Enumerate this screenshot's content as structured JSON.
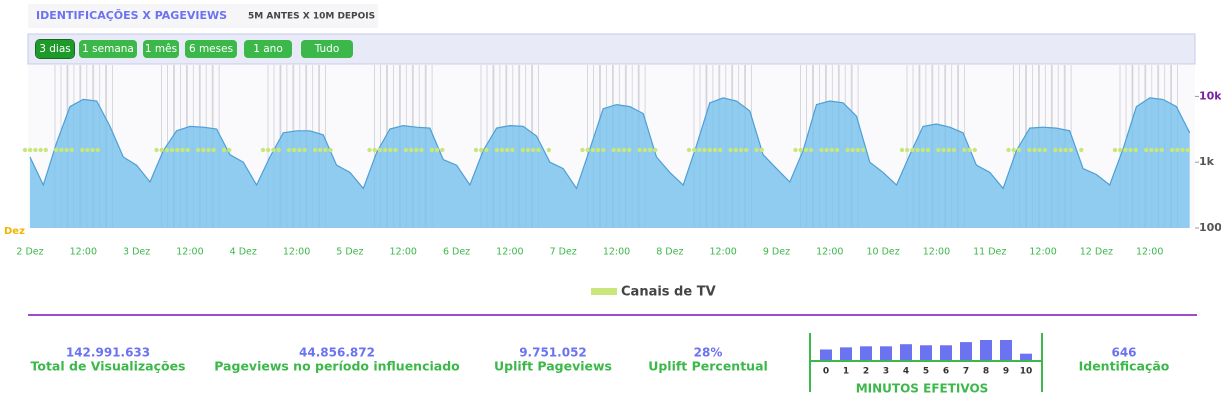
{
  "header": {
    "tabs": [
      "IDENTIFICAÇÕES X PAGEVIEWS",
      "5M ANTES X 10M DEPOIS"
    ]
  },
  "range_buttons": [
    "3 dias",
    "1 semana",
    "1 mês",
    "6 meses",
    "1 ano",
    "Tudo"
  ],
  "chart_data": {
    "type": "area",
    "log_scale": true,
    "ylim": [
      100,
      30000
    ],
    "yticks": [
      100,
      {
        "value": 1000,
        "label": "1k"
      },
      {
        "value": 10000,
        "label": "10k"
      }
    ],
    "x_left_label": "Dez",
    "categories": [
      "2 Dez",
      null,
      null,
      null,
      "12:00",
      null,
      null,
      null,
      "3 Dez",
      null,
      null,
      null,
      "12:00",
      null,
      null,
      null,
      "4 Dez",
      null,
      null,
      null,
      "12:00",
      null,
      null,
      null,
      "5 Dez",
      null,
      null,
      null,
      "12:00",
      null,
      null,
      null,
      "6 Dez",
      null,
      null,
      null,
      "12:00",
      null,
      null,
      null,
      "7 Dez",
      null,
      null,
      null,
      "12:00",
      null,
      null,
      null,
      "8 Dez",
      null,
      null,
      null,
      "12:00",
      null,
      null,
      null,
      "9 Dez",
      null,
      null,
      null,
      "12:00",
      null,
      null,
      null,
      "10 Dez",
      null,
      null,
      null,
      "12:00",
      null,
      null,
      null,
      "11 Dez",
      null,
      null,
      null,
      "12:00",
      null,
      null,
      null,
      "12 Dez",
      null,
      null,
      null,
      "12:00",
      null,
      null,
      null
    ],
    "series": [
      {
        "name": "Pageviews",
        "color": "#7cc3ec",
        "values": [
          1200,
          450,
          2000,
          7000,
          9000,
          8500,
          3500,
          1200,
          900,
          500,
          1500,
          3000,
          3500,
          3400,
          3200,
          1300,
          1000,
          450,
          1200,
          2800,
          3000,
          3000,
          2600,
          900,
          700,
          400,
          1400,
          3200,
          3600,
          3400,
          3300,
          1100,
          900,
          450,
          1500,
          3300,
          3600,
          3500,
          2500,
          1000,
          800,
          400,
          1600,
          6500,
          7500,
          7000,
          5500,
          1200,
          700,
          450,
          1800,
          8000,
          9500,
          8500,
          6000,
          1300,
          800,
          500,
          1500,
          7500,
          8500,
          8000,
          5000,
          1000,
          700,
          450,
          1300,
          3500,
          3800,
          3400,
          2800,
          900,
          700,
          400,
          1500,
          3300,
          3400,
          3300,
          3000,
          800,
          650,
          450,
          1600,
          7000,
          9500,
          9000,
          7000,
          2800
        ]
      }
    ],
    "legend": {
      "name": "Canais de TV",
      "color": "#c9e67a"
    }
  },
  "kpis": [
    {
      "value": "142.991.633",
      "label": "Total de Visualizações"
    },
    {
      "value": "44.856.872",
      "label": "Pageviews no período influenciado"
    },
    {
      "value": "9.751.052",
      "label": "Uplift Pageviews"
    },
    {
      "value": "28%",
      "label": "Uplift Percentual"
    }
  ],
  "minutes_chart": {
    "type": "bar",
    "title": "MINUTOS EFETIVOS",
    "color": "#6b73f0",
    "categories": [
      "0",
      "1",
      "2",
      "3",
      "4",
      "5",
      "6",
      "7",
      "8",
      "9",
      "10"
    ],
    "values": [
      10,
      12,
      13,
      13,
      15,
      14,
      14,
      17,
      19,
      19,
      6
    ]
  },
  "identification": {
    "value": "646",
    "label": "Identificação"
  }
}
